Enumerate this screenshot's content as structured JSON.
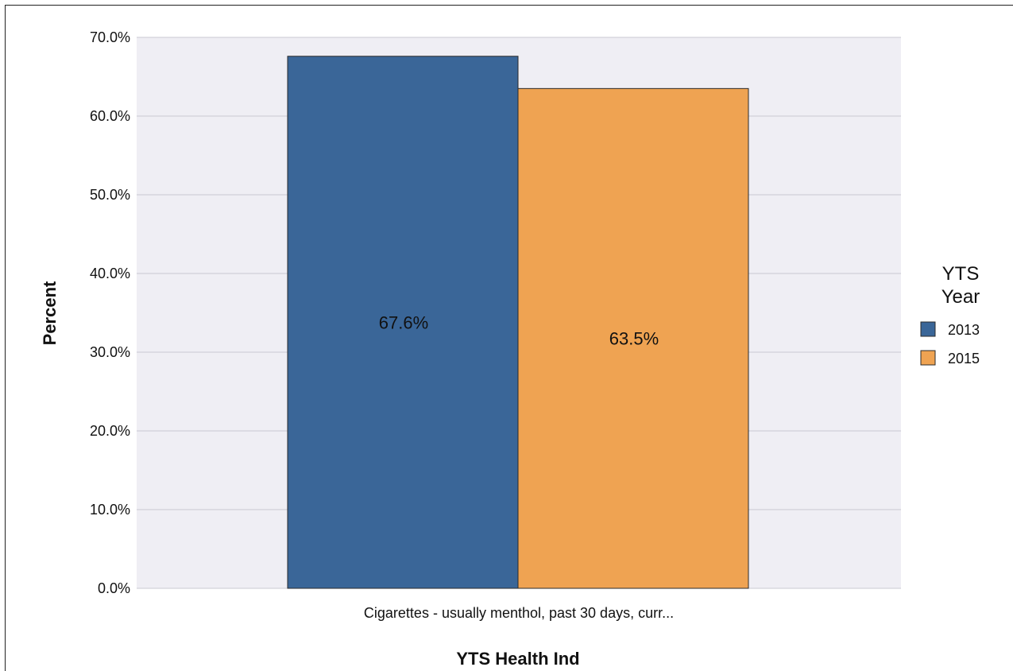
{
  "chart_data": {
    "type": "bar",
    "categories": [
      "Cigarettes - usually menthol, past 30 days, curr..."
    ],
    "series": [
      {
        "name": "2013",
        "values": [
          67.6
        ],
        "labels": [
          "67.6%"
        ],
        "color": "#3a6698"
      },
      {
        "name": "2015",
        "values": [
          63.5
        ],
        "labels": [
          "63.5%"
        ],
        "color": "#efa352"
      }
    ],
    "xlabel": "YTS Health Ind",
    "ylabel": "Percent",
    "ylim": [
      0,
      70
    ],
    "yticks": [
      {
        "value": 0,
        "label": "0.0%"
      },
      {
        "value": 10,
        "label": "10.0%"
      },
      {
        "value": 20,
        "label": "20.0%"
      },
      {
        "value": 30,
        "label": "30.0%"
      },
      {
        "value": 40,
        "label": "40.0%"
      },
      {
        "value": 50,
        "label": "50.0%"
      },
      {
        "value": 60,
        "label": "60.0%"
      },
      {
        "value": 70,
        "label": "70.0%"
      }
    ],
    "legend": {
      "title_lines": [
        "YTS",
        "Year"
      ],
      "placement": "right"
    },
    "grid": true,
    "plot_background": "#efeef4",
    "grid_color": "#c9c8d2"
  }
}
